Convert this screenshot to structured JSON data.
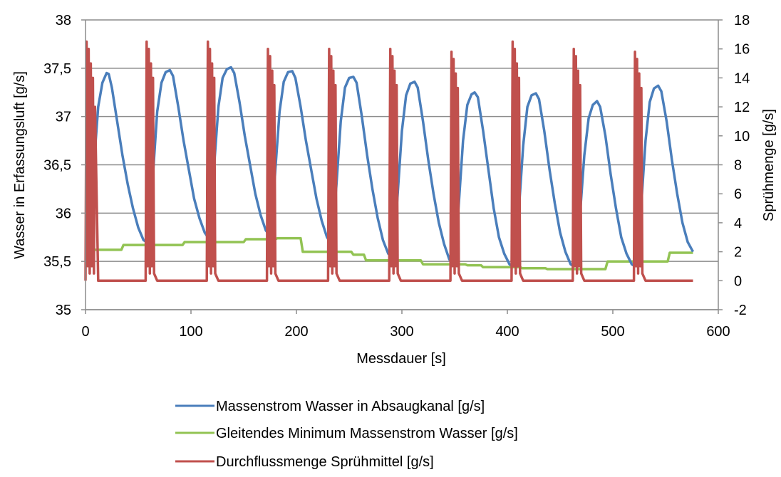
{
  "chart_data": {
    "type": "line",
    "xlabel": "Messdauer [s]",
    "ylabel_left": "Wasser in Erfassungsluft [g/s]",
    "ylabel_right": "Sprühmenge  [g/s]",
    "xlim": [
      0,
      600
    ],
    "ylim_left": [
      35,
      38
    ],
    "ylim_right": [
      -2,
      18
    ],
    "x_ticks": [
      "0",
      "100",
      "200",
      "300",
      "400",
      "500",
      "600"
    ],
    "y_left_ticks": [
      "35",
      "35,5",
      "36",
      "36,5",
      "37",
      "37,5",
      "38"
    ],
    "y_right_ticks": [
      "-2",
      "0",
      "2",
      "4",
      "6",
      "8",
      "10",
      "12",
      "14",
      "16",
      "18"
    ],
    "grid": "horizontal",
    "legend_position": "bottom",
    "series": [
      {
        "name": "Massenstrom Wasser in Absaugkanal [g/s]",
        "axis": "left",
        "color": "#4a7ebb",
        "x": [
          0,
          5,
          8,
          12,
          16,
          20,
          22,
          25,
          30,
          35,
          40,
          45,
          50,
          55,
          58,
          60,
          64,
          68,
          72,
          76,
          80,
          83,
          88,
          93,
          98,
          103,
          108,
          113,
          116,
          118,
          122,
          126,
          130,
          134,
          138,
          141,
          146,
          151,
          156,
          161,
          166,
          171,
          174,
          176,
          180,
          184,
          188,
          192,
          196,
          199,
          204,
          209,
          214,
          219,
          224,
          229,
          232,
          234,
          238,
          242,
          246,
          250,
          254,
          257,
          262,
          267,
          272,
          277,
          282,
          287,
          290,
          292,
          296,
          300,
          304,
          308,
          312,
          315,
          320,
          325,
          330,
          335,
          340,
          345,
          348,
          350,
          354,
          358,
          362,
          366,
          369,
          372,
          377,
          382,
          387,
          392,
          397,
          402,
          405,
          407,
          411,
          415,
          419,
          423,
          427,
          430,
          435,
          440,
          445,
          450,
          455,
          460,
          463,
          465,
          469,
          473,
          477,
          481,
          485,
          488,
          493,
          498,
          503,
          508,
          513,
          518,
          521,
          523,
          527,
          531,
          535,
          539,
          543,
          546,
          551,
          556,
          561,
          566,
          571,
          576
        ],
        "values": [
          35.65,
          35.7,
          36.5,
          37.1,
          37.35,
          37.45,
          37.44,
          37.3,
          36.95,
          36.6,
          36.3,
          36.05,
          35.85,
          35.72,
          35.7,
          35.75,
          36.4,
          37.05,
          37.35,
          37.46,
          37.48,
          37.42,
          37.1,
          36.75,
          36.45,
          36.15,
          35.95,
          35.8,
          35.75,
          35.78,
          36.5,
          37.1,
          37.4,
          37.49,
          37.51,
          37.45,
          37.15,
          36.8,
          36.5,
          36.2,
          35.98,
          35.82,
          35.78,
          35.8,
          36.45,
          37.05,
          37.36,
          37.46,
          37.47,
          37.4,
          37.1,
          36.75,
          36.45,
          36.15,
          35.92,
          35.75,
          35.7,
          35.72,
          36.3,
          36.95,
          37.3,
          37.4,
          37.41,
          37.35,
          37.0,
          36.6,
          36.25,
          35.95,
          35.72,
          35.58,
          35.55,
          35.56,
          36.2,
          36.85,
          37.22,
          37.34,
          37.36,
          37.3,
          36.95,
          36.55,
          36.2,
          35.9,
          35.68,
          35.52,
          35.5,
          35.5,
          36.1,
          36.75,
          37.12,
          37.23,
          37.25,
          37.2,
          36.85,
          36.45,
          36.05,
          35.75,
          35.58,
          35.47,
          35.45,
          35.46,
          36.05,
          36.7,
          37.1,
          37.22,
          37.24,
          37.18,
          36.85,
          36.45,
          36.1,
          35.8,
          35.6,
          35.47,
          35.45,
          35.46,
          36.0,
          36.6,
          36.98,
          37.12,
          37.16,
          37.1,
          36.8,
          36.4,
          36.05,
          35.75,
          35.58,
          35.47,
          35.45,
          35.47,
          36.1,
          36.75,
          37.15,
          37.29,
          37.32,
          37.26,
          36.95,
          36.55,
          36.2,
          35.9,
          35.7,
          35.6
        ]
      },
      {
        "name": "Gleitendes Minimum Massenstrom Wasser [g/s]",
        "axis": "left",
        "color": "#92c353",
        "x": [
          0,
          34,
          36,
          92,
          94,
          150,
          152,
          180,
          182,
          204,
          206,
          233,
          235,
          252,
          254,
          264,
          266,
          318,
          320,
          360,
          362,
          375,
          377,
          412,
          414,
          436,
          438,
          493,
          495,
          552,
          554,
          576
        ],
        "values": [
          35.62,
          35.62,
          35.67,
          35.67,
          35.7,
          35.7,
          35.73,
          35.73,
          35.74,
          35.74,
          35.6,
          35.6,
          35.6,
          35.6,
          35.57,
          35.57,
          35.51,
          35.51,
          35.47,
          35.47,
          35.46,
          35.46,
          35.44,
          35.44,
          35.43,
          35.43,
          35.42,
          35.42,
          35.5,
          35.5,
          35.59,
          35.59
        ]
      },
      {
        "name": "Durchflussmenge Sprühmittel [g/s]",
        "axis": "right",
        "color": "#c0504d",
        "x": [
          0,
          1,
          2,
          3,
          4,
          5,
          6,
          7,
          8,
          9,
          12,
          57,
          58,
          59,
          60,
          61,
          62,
          63,
          64,
          65,
          68,
          115,
          116,
          117,
          118,
          119,
          120,
          121,
          122,
          123,
          126,
          172,
          173,
          174,
          175,
          176,
          177,
          178,
          179,
          180,
          183,
          230,
          231,
          232,
          233,
          234,
          235,
          236,
          237,
          238,
          241,
          288,
          289,
          290,
          291,
          292,
          293,
          294,
          295,
          296,
          299,
          346,
          347,
          348,
          349,
          350,
          351,
          352,
          353,
          354,
          357,
          404,
          405,
          406,
          407,
          408,
          409,
          410,
          411,
          412,
          415,
          462,
          463,
          464,
          465,
          466,
          467,
          468,
          469,
          470,
          473,
          520,
          521,
          522,
          523,
          524,
          525,
          526,
          527,
          528,
          531,
          576
        ],
        "values": [
          0,
          16.5,
          1,
          16,
          0.5,
          15,
          1,
          14,
          0.5,
          12,
          0,
          0,
          16.5,
          1,
          16,
          0.5,
          15,
          1,
          14,
          0.5,
          0,
          0,
          16.5,
          1,
          16,
          0.5,
          15,
          1,
          14,
          0.5,
          0,
          0,
          16,
          1,
          15.5,
          0.5,
          14.5,
          1,
          13.5,
          0.5,
          0,
          0,
          16,
          1,
          15.5,
          0.5,
          14.5,
          1,
          13.5,
          0.5,
          0,
          0,
          16,
          1,
          15.5,
          0.5,
          14.5,
          1,
          13.5,
          0.5,
          0,
          0,
          15.8,
          1,
          15.3,
          0.5,
          14.3,
          1,
          13.3,
          0.5,
          0,
          0,
          16.5,
          1,
          16,
          0.5,
          15,
          1,
          14,
          0.5,
          0,
          0,
          16,
          1,
          15.5,
          0.5,
          14.5,
          1,
          13.5,
          0.5,
          0,
          0,
          15.8,
          1,
          15.3,
          0.5,
          14.3,
          1,
          13.3,
          0.5,
          0,
          0
        ]
      }
    ]
  }
}
